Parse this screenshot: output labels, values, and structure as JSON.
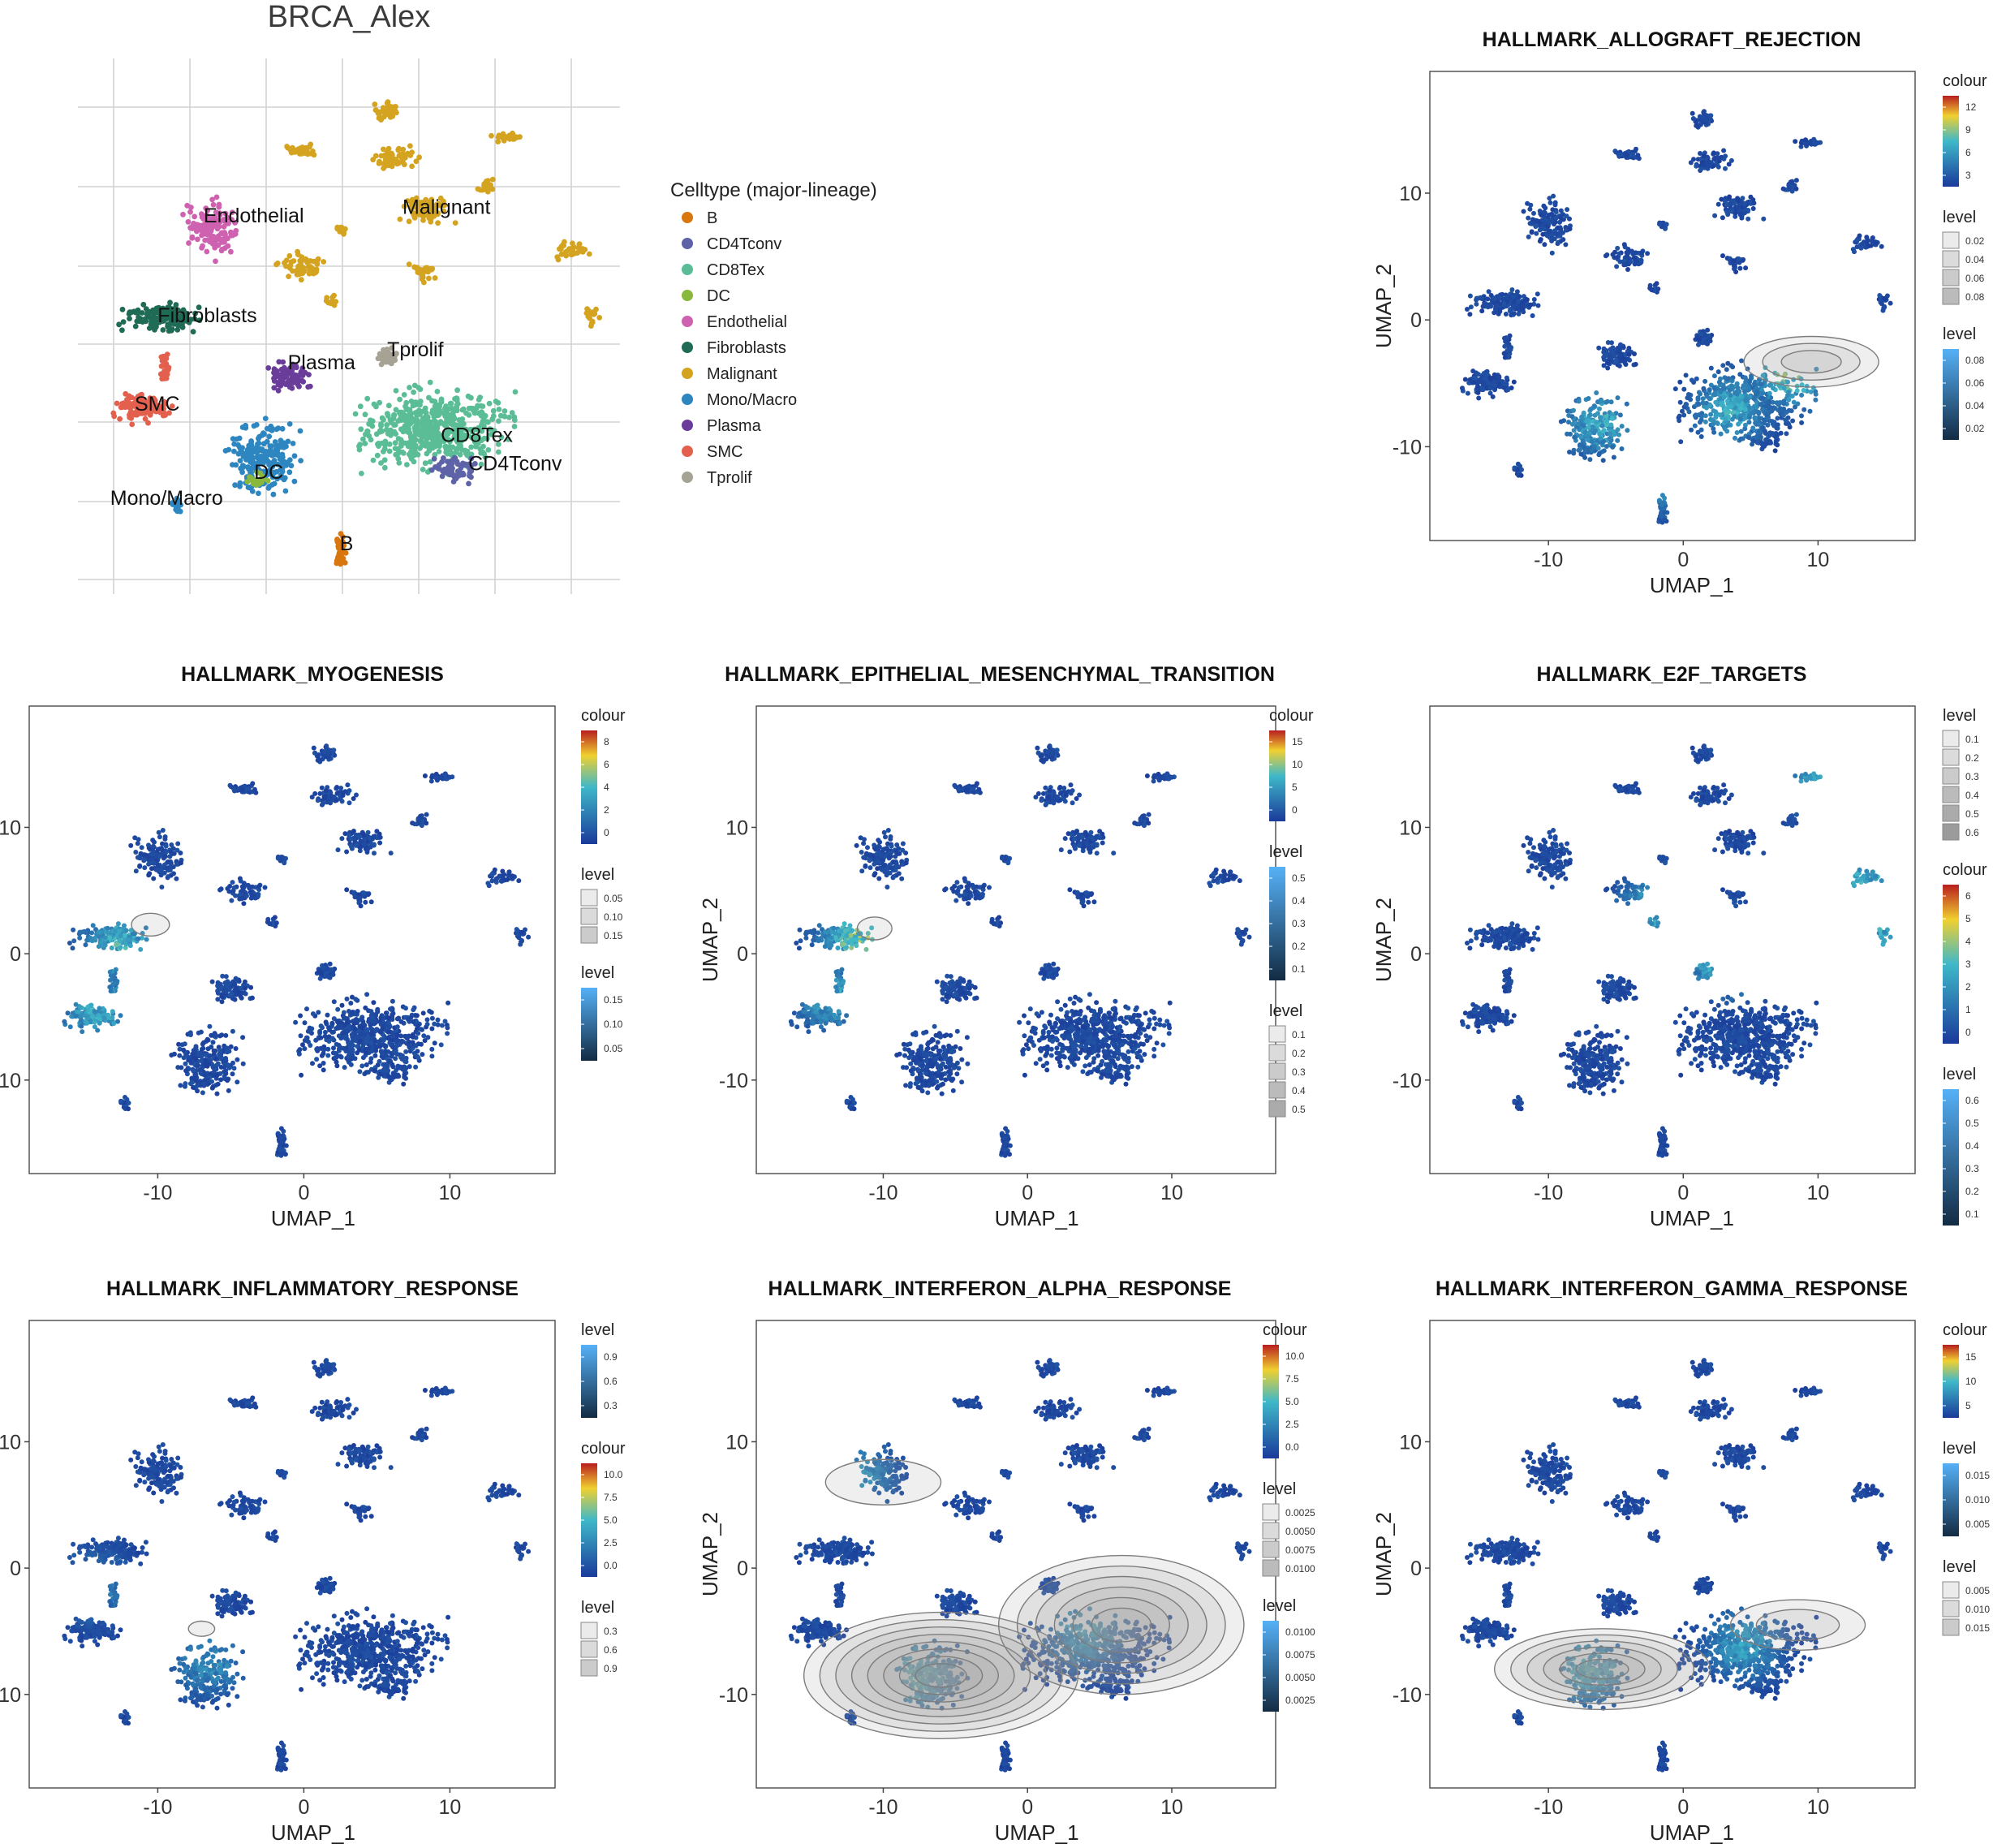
{
  "colors": {
    "B": "#d9770f",
    "CD4Tconv": "#5e63a8",
    "CD8Tex": "#5bbd95",
    "DC": "#8ab83c",
    "Endothelial": "#cf62b0",
    "Fibroblasts": "#1f6b55",
    "Malignant": "#d4a420",
    "Mono/Macro": "#2e86c1",
    "Plasma": "#6a3d9a",
    "SMC": "#e4604e",
    "Tprolif": "#a6a294",
    "feature_low": "#1a3a9a",
    "feature_mid": "#3fb8c9",
    "feature_high": "#f0d030",
    "feature_max": "#b81e1e",
    "density_fill": "#9a9a9a",
    "density_line": "#7d7d7d"
  },
  "chart_data": [
    {
      "type": "scatter",
      "panel": "celltype",
      "title": "BRCA_Alex",
      "legend_title": "Celltype (major-lineage)",
      "legend_items": [
        "B",
        "CD4Tconv",
        "CD8Tex",
        "DC",
        "Endothelial",
        "Fibroblasts",
        "Malignant",
        "Mono/Macro",
        "Plasma",
        "SMC",
        "Tprolif"
      ],
      "cluster_labels": [
        {
          "text": "Endothelial",
          "x": -10.5,
          "y": 8.0
        },
        {
          "text": "Malignant",
          "x": 2.5,
          "y": 8.6
        },
        {
          "text": "Fibroblasts",
          "x": -13.5,
          "y": 1.0
        },
        {
          "text": "Plasma",
          "x": -5.0,
          "y": -2.3
        },
        {
          "text": "Tprolif",
          "x": 1.5,
          "y": -1.4
        },
        {
          "text": "SMC",
          "x": -15.0,
          "y": -5.2
        },
        {
          "text": "CD8Tex",
          "x": 5.0,
          "y": -7.4
        },
        {
          "text": "CD4Tconv",
          "x": 6.8,
          "y": -9.4
        },
        {
          "text": "DC",
          "x": -7.2,
          "y": -10.0
        },
        {
          "text": "Mono/Macro",
          "x": -16.6,
          "y": -11.8
        },
        {
          "text": "B",
          "x": -1.6,
          "y": -15.0
        }
      ]
    },
    {
      "type": "scatter",
      "panel": "feature",
      "title": "HALLMARK_ALLOGRAFT_REJECTION",
      "xlabel": "UMAP_1",
      "ylabel": "UMAP_2",
      "xticks": [
        -10,
        0,
        10
      ],
      "yticks": [
        10,
        0,
        -10
      ],
      "xlim": [
        -18.8,
        17.2
      ],
      "ylim": [
        -17.4,
        19.6
      ],
      "hot": [
        {
          "x": 3.5,
          "y": -7.0,
          "v": 0.55
        },
        {
          "x": 8.0,
          "y": -4.0,
          "v": 0.75
        },
        {
          "x": -6.2,
          "y": -8.0,
          "v": 0.55
        },
        {
          "x": -2.0,
          "y": -12.5,
          "v": 0.5
        }
      ],
      "contours": [
        {
          "x": 9.5,
          "y": -3.3,
          "rx": 5.0,
          "ry": 2.0,
          "n": 3
        }
      ],
      "legends": [
        {
          "title": "colour",
          "type": "colourbar",
          "ticks": [
            "12",
            "9",
            "6",
            "3"
          ]
        },
        {
          "title": "level",
          "type": "keys",
          "ticks": [
            "0.02",
            "0.04",
            "0.06",
            "0.08"
          ]
        },
        {
          "title": "level",
          "type": "bluebar",
          "ticks": [
            "0.08",
            "0.06",
            "0.04",
            "0.02"
          ]
        }
      ]
    },
    {
      "type": "scatter",
      "panel": "feature",
      "title": "HALLMARK_MYOGENESIS",
      "xlabel": "UMAP_1",
      "ylabel": "UMAP_2",
      "xticks": [
        -10,
        0,
        10
      ],
      "yticks": [
        10,
        0,
        -10
      ],
      "xlim": [
        -18.8,
        17.2
      ],
      "ylim": [
        -17.4,
        19.6
      ],
      "hot": [
        {
          "x": -12.5,
          "y": 0.5,
          "v": 0.6
        },
        {
          "x": -14.0,
          "y": -4.5,
          "v": 0.55
        }
      ],
      "contours": [
        {
          "x": -10.5,
          "y": 2.3,
          "rx": 1.3,
          "ry": 0.9,
          "n": 1
        }
      ],
      "legends": [
        {
          "title": "colour",
          "type": "colourbar",
          "ticks": [
            "8",
            "6",
            "4",
            "2",
            "0"
          ]
        },
        {
          "title": "level",
          "type": "keys",
          "ticks": [
            "0.05",
            "0.10",
            "0.15"
          ]
        },
        {
          "title": "level",
          "type": "bluebar",
          "ticks": [
            "0.15",
            "0.10",
            "0.05"
          ]
        }
      ]
    },
    {
      "type": "scatter",
      "panel": "feature",
      "title": "HALLMARK_EPITHELIAL_MESENCHYMAL_TRANSITION",
      "xlabel": "UMAP_1",
      "ylabel": "UMAP_2",
      "xticks": [
        -10,
        0,
        10
      ],
      "yticks": [
        10,
        0,
        -10
      ],
      "xlim": [
        -18.8,
        17.2
      ],
      "ylim": [
        -17.4,
        19.6
      ],
      "hot": [
        {
          "x": -11.5,
          "y": 1.0,
          "v": 0.75
        },
        {
          "x": -13.5,
          "y": -3.5,
          "v": 0.5
        }
      ],
      "contours": [
        {
          "x": -10.6,
          "y": 2.0,
          "rx": 1.2,
          "ry": 0.9,
          "n": 1
        }
      ],
      "legends": [
        {
          "title": "colour",
          "type": "colourbar",
          "ticks": [
            "15",
            "10",
            "5",
            "0"
          ]
        },
        {
          "title": "level",
          "type": "bluebar",
          "ticks": [
            "0.5",
            "0.4",
            "0.3",
            "0.2",
            "0.1"
          ]
        },
        {
          "title": "level",
          "type": "keys",
          "ticks": [
            "0.1",
            "0.2",
            "0.3",
            "0.4",
            "0.5"
          ]
        }
      ]
    },
    {
      "type": "scatter",
      "panel": "feature",
      "title": "HALLMARK_E2F_TARGETS",
      "xlabel": "UMAP_1",
      "ylabel": "UMAP_2",
      "xticks": [
        -10,
        0,
        10
      ],
      "yticks": [
        10,
        0,
        -10
      ],
      "xlim": [
        -18.8,
        17.2
      ],
      "ylim": [
        -17.4,
        19.6
      ],
      "hot": [
        {
          "x": 3.5,
          "y": 0.0,
          "v": 0.85
        },
        {
          "x": -2.0,
          "y": 3.5,
          "v": 0.55
        },
        {
          "x": 13.5,
          "y": 6.0,
          "v": 0.55
        },
        {
          "x": 14.5,
          "y": 1.5,
          "v": 0.55
        },
        {
          "x": 9.5,
          "y": 14.0,
          "v": 0.5
        }
      ],
      "contours": [],
      "legends": [
        {
          "title": "level",
          "type": "keys",
          "ticks": [
            "0.1",
            "0.2",
            "0.3",
            "0.4",
            "0.5",
            "0.6"
          ]
        },
        {
          "title": "colour",
          "type": "colourbar",
          "ticks": [
            "6",
            "5",
            "4",
            "3",
            "2",
            "1",
            "0"
          ]
        },
        {
          "title": "level",
          "type": "bluebar",
          "ticks": [
            "0.6",
            "0.5",
            "0.4",
            "0.3",
            "0.2",
            "0.1"
          ]
        }
      ]
    },
    {
      "type": "scatter",
      "panel": "feature",
      "title": "HALLMARK_INFLAMMATORY_RESPONSE",
      "xlabel": "UMAP_1",
      "ylabel": "UMAP_2",
      "xticks": [
        -10,
        0,
        10
      ],
      "yticks": [
        10,
        0,
        -10
      ],
      "xlim": [
        -18.8,
        17.2
      ],
      "ylim": [
        -17.4,
        19.6
      ],
      "hot": [
        {
          "x": -6.5,
          "y": -7.5,
          "v": 0.4
        },
        {
          "x": -14.5,
          "y": -1.5,
          "v": 0.35
        }
      ],
      "contours": [
        {
          "x": -7.0,
          "y": -4.8,
          "rx": 0.9,
          "ry": 0.6,
          "n": 1
        }
      ],
      "legends": [
        {
          "title": "level",
          "type": "bluebar",
          "ticks": [
            "0.9",
            "0.6",
            "0.3"
          ]
        },
        {
          "title": "colour",
          "type": "colourbar",
          "ticks": [
            "10.0",
            "7.5",
            "5.0",
            "2.5",
            "0.0"
          ]
        },
        {
          "title": "level",
          "type": "keys",
          "ticks": [
            "0.3",
            "0.6",
            "0.9"
          ]
        }
      ]
    },
    {
      "type": "scatter",
      "panel": "feature",
      "title": "HALLMARK_INTERFERON_ALPHA_RESPONSE",
      "xlabel": "UMAP_1",
      "ylabel": "UMAP_2",
      "xticks": [
        -10,
        0,
        10
      ],
      "yticks": [
        10,
        0,
        -10
      ],
      "xlim": [
        -18.8,
        17.2
      ],
      "ylim": [
        -17.4,
        19.6
      ],
      "hot": [
        {
          "x": -7.5,
          "y": -8.5,
          "v": 0.6
        },
        {
          "x": 4.0,
          "y": -5.0,
          "v": 0.5
        },
        {
          "x": -12.0,
          "y": 7.5,
          "v": 0.45
        }
      ],
      "contours": [
        {
          "x": -6.0,
          "y": -8.5,
          "rx": 9.5,
          "ry": 5.0,
          "n": 8
        },
        {
          "x": 6.5,
          "y": -4.5,
          "rx": 8.5,
          "ry": 5.5,
          "n": 6
        },
        {
          "x": -10.0,
          "y": 6.8,
          "rx": 4.0,
          "ry": 1.8,
          "n": 1
        }
      ],
      "legends": [
        {
          "title": "colour",
          "type": "colourbar",
          "ticks": [
            "10.0",
            "7.5",
            "5.0",
            "2.5",
            "0.0"
          ]
        },
        {
          "title": "level",
          "type": "keys",
          "ticks": [
            "0.0025",
            "0.0050",
            "0.0075",
            "0.0100"
          ]
        },
        {
          "title": "level",
          "type": "bluebar",
          "ticks": [
            "0.0100",
            "0.0075",
            "0.0050",
            "0.0025"
          ]
        }
      ]
    },
    {
      "type": "scatter",
      "panel": "feature",
      "title": "HALLMARK_INTERFERON_GAMMA_RESPONSE",
      "xlabel": "UMAP_1",
      "ylabel": "UMAP_2",
      "xticks": [
        -10,
        0,
        10
      ],
      "yticks": [
        10,
        0,
        -10
      ],
      "xlim": [
        -18.8,
        17.2
      ],
      "ylim": [
        -17.4,
        19.6
      ],
      "hot": [
        {
          "x": -7.0,
          "y": -8.0,
          "v": 0.6
        },
        {
          "x": 4.5,
          "y": -6.0,
          "v": 0.5
        }
      ],
      "contours": [
        {
          "x": -6.0,
          "y": -8.0,
          "rx": 8.0,
          "ry": 3.2,
          "n": 6
        },
        {
          "x": 8.5,
          "y": -4.5,
          "rx": 5.0,
          "ry": 2.0,
          "n": 2
        }
      ],
      "legends": [
        {
          "title": "colour",
          "type": "colourbar",
          "ticks": [
            "15",
            "10",
            "5"
          ]
        },
        {
          "title": "level",
          "type": "bluebar",
          "ticks": [
            "0.015",
            "0.010",
            "0.005"
          ]
        },
        {
          "title": "level",
          "type": "keys",
          "ticks": [
            "0.005",
            "0.010",
            "0.015"
          ]
        }
      ]
    }
  ]
}
